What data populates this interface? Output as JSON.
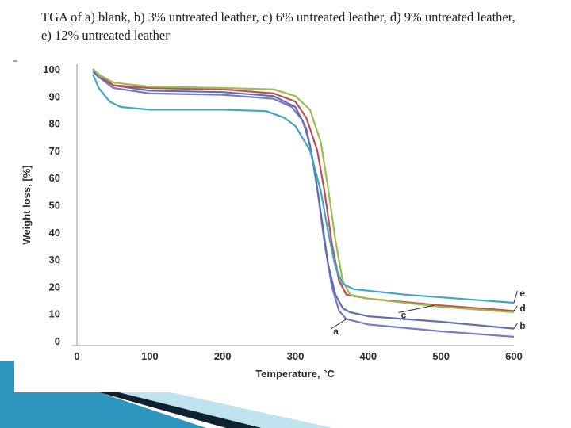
{
  "slide": {
    "title": "TGA of a) blank, b) 3% untreated leather, c) 6% untreated leather, d) 9% untreated leather, e) 12% untreated leather"
  },
  "colors": {
    "accent_teal": "#2f97bf",
    "accent_dark": "#0f2230",
    "accent_light": "#bfe3ef"
  },
  "chart_data": {
    "type": "line",
    "title": "",
    "xlabel": "Temperature, °C",
    "ylabel": "Weight loss, [%]",
    "xlim": [
      0,
      600
    ],
    "ylim": [
      0,
      100
    ],
    "x_ticks": [
      0,
      100,
      200,
      300,
      400,
      500,
      600
    ],
    "y_ticks": [
      0,
      10,
      20,
      30,
      40,
      50,
      60,
      70,
      80,
      90,
      100
    ],
    "grid": false,
    "series": [
      {
        "name": "a",
        "color": "#7a78c8",
        "points": [
          [
            22,
            100
          ],
          [
            30,
            97
          ],
          [
            50,
            93
          ],
          [
            100,
            91
          ],
          [
            200,
            90.5
          ],
          [
            270,
            89
          ],
          [
            295,
            86
          ],
          [
            310,
            81
          ],
          [
            320,
            72
          ],
          [
            330,
            56
          ],
          [
            340,
            36
          ],
          [
            350,
            20
          ],
          [
            360,
            11
          ],
          [
            370,
            8
          ],
          [
            400,
            6
          ],
          [
            500,
            3.5
          ],
          [
            600,
            1.5
          ]
        ]
      },
      {
        "name": "b",
        "color": "#5d6fae",
        "points": [
          [
            22,
            99
          ],
          [
            30,
            97
          ],
          [
            50,
            94
          ],
          [
            100,
            92
          ],
          [
            200,
            91.5
          ],
          [
            270,
            90
          ],
          [
            300,
            86
          ],
          [
            315,
            78
          ],
          [
            325,
            65
          ],
          [
            335,
            47
          ],
          [
            345,
            28
          ],
          [
            355,
            17
          ],
          [
            365,
            12
          ],
          [
            375,
            10.5
          ],
          [
            400,
            9
          ],
          [
            500,
            7
          ],
          [
            600,
            4.5
          ]
        ]
      },
      {
        "name": "c",
        "color": "#c24d52",
        "points": [
          [
            22,
            100
          ],
          [
            30,
            98
          ],
          [
            50,
            94
          ],
          [
            100,
            93
          ],
          [
            200,
            92.5
          ],
          [
            270,
            91
          ],
          [
            300,
            88
          ],
          [
            315,
            82
          ],
          [
            330,
            70
          ],
          [
            340,
            55
          ],
          [
            350,
            36
          ],
          [
            360,
            22
          ],
          [
            370,
            17
          ],
          [
            400,
            15.5
          ],
          [
            500,
            13
          ],
          [
            600,
            11
          ]
        ]
      },
      {
        "name": "d",
        "color": "#9bbd4e",
        "points": [
          [
            22,
            100
          ],
          [
            30,
            98
          ],
          [
            50,
            95
          ],
          [
            100,
            93.5
          ],
          [
            200,
            93
          ],
          [
            270,
            92.5
          ],
          [
            300,
            90
          ],
          [
            320,
            85
          ],
          [
            335,
            73
          ],
          [
            345,
            56
          ],
          [
            355,
            37
          ],
          [
            365,
            22
          ],
          [
            375,
            17
          ],
          [
            400,
            15.5
          ],
          [
            500,
            12.5
          ],
          [
            600,
            10.5
          ]
        ]
      },
      {
        "name": "e",
        "color": "#3fa6c9",
        "points": [
          [
            22,
            98
          ],
          [
            30,
            93
          ],
          [
            45,
            88
          ],
          [
            60,
            86
          ],
          [
            100,
            85
          ],
          [
            200,
            85
          ],
          [
            260,
            84.5
          ],
          [
            285,
            82
          ],
          [
            300,
            79
          ],
          [
            320,
            70
          ],
          [
            335,
            55
          ],
          [
            345,
            40
          ],
          [
            355,
            27
          ],
          [
            365,
            21
          ],
          [
            380,
            19
          ],
          [
            450,
            17
          ],
          [
            600,
            14
          ]
        ]
      }
    ],
    "annotations": [
      {
        "text": "e",
        "x": 600,
        "y": 14,
        "label_x": 608,
        "label_y": 17.5
      },
      {
        "text": "d",
        "x": 600,
        "y": 11,
        "label_x": 608,
        "label_y": 12
      },
      {
        "text": "c",
        "x": 490,
        "y": 13,
        "label_x": 445,
        "label_y": 9.5
      },
      {
        "text": "b",
        "x": 600,
        "y": 4.5,
        "label_x": 608,
        "label_y": 5.5
      },
      {
        "text": "a",
        "x": 370,
        "y": 8,
        "label_x": 352,
        "label_y": 3.5
      }
    ]
  }
}
